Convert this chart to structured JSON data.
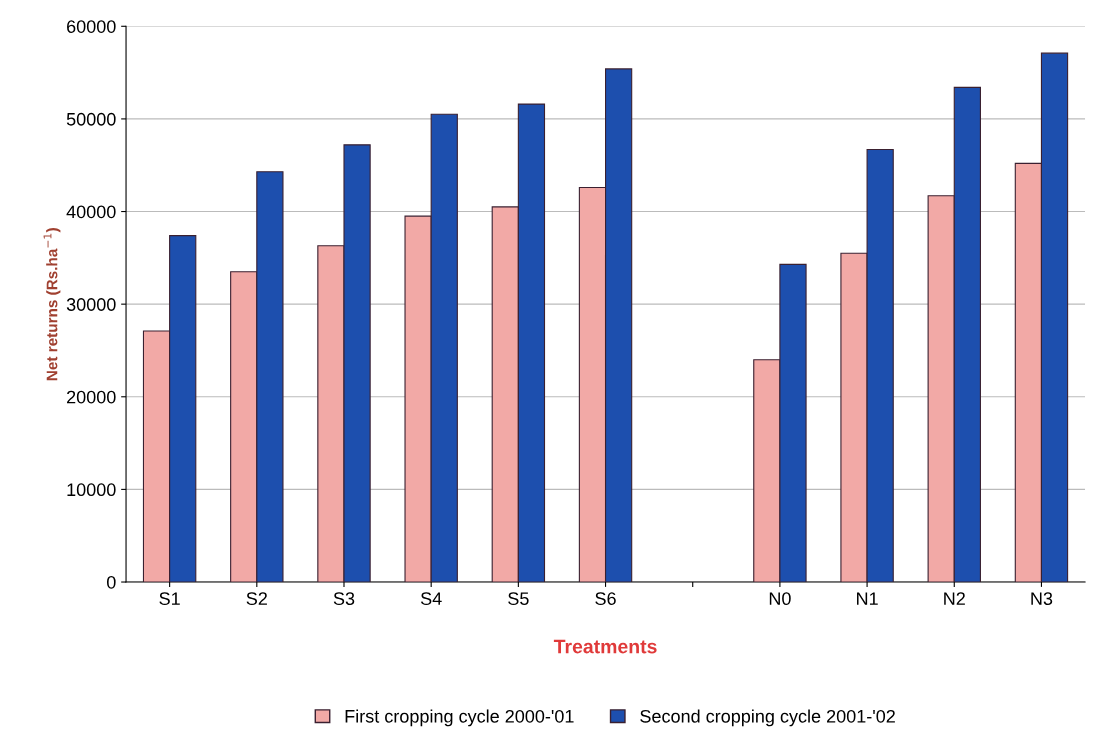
{
  "chart_data": {
    "type": "bar",
    "xlabel": "Treatments",
    "ylabel": "Net returns (Rs.ha$^{−1}$)",
    "categories": [
      "S1",
      "S2",
      "S3",
      "S4",
      "S5",
      "S6",
      null,
      "N0",
      "N1",
      "N2",
      "N3"
    ],
    "series": [
      {
        "name": "First cropping cycle 2000-'01",
        "color": "#f2a9a6",
        "values": [
          27100,
          33500,
          36300,
          39500,
          40500,
          42600,
          null,
          24000,
          35500,
          41700,
          45200
        ]
      },
      {
        "name": "Second cropping cycle 2001-'02",
        "color": "#1d4fae",
        "values": [
          37400,
          44300,
          47200,
          50500,
          51600,
          55400,
          null,
          34300,
          46700,
          53400,
          57100
        ]
      }
    ],
    "ylim": [
      0,
      60000
    ],
    "yticks": [
      0,
      10000,
      20000,
      30000,
      40000,
      50000,
      60000
    ],
    "grid": "y",
    "legend": "bottom"
  }
}
